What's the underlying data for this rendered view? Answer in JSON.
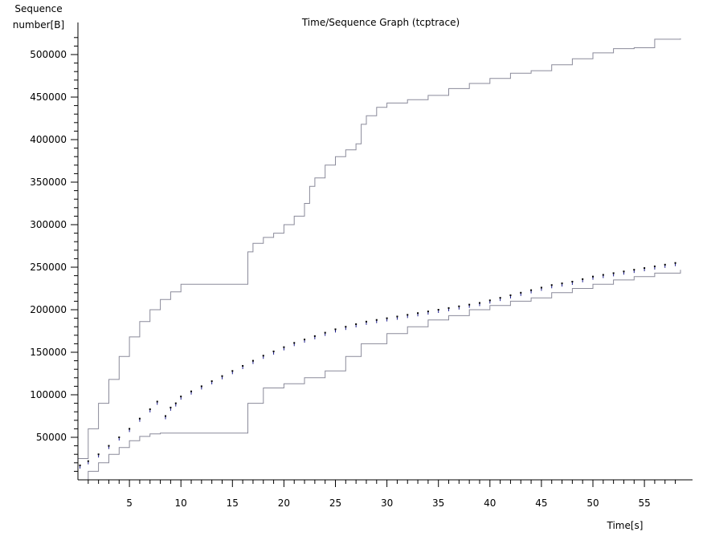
{
  "chart_data": {
    "type": "line",
    "title": "Time/Sequence Graph (tcptrace)",
    "ylabel_line1": "Sequence",
    "ylabel_line2": "number[B]",
    "xlabel": "Time[s]",
    "xlim": [
      0,
      59
    ],
    "ylim": [
      0,
      530000
    ],
    "x_ticks": [
      5,
      10,
      15,
      20,
      25,
      30,
      35,
      40,
      45,
      50,
      55
    ],
    "x_tick_labels": [
      "5",
      "10",
      "15",
      "20",
      "25",
      "30",
      "35",
      "40",
      "45",
      "50",
      "55"
    ],
    "y_ticks": [
      50000,
      100000,
      150000,
      200000,
      250000,
      300000,
      350000,
      400000,
      450000,
      500000
    ],
    "y_tick_labels": [
      "50000",
      "100000",
      "150000",
      "200000",
      "250000",
      "300000",
      "350000",
      "400000",
      "450000",
      "500000"
    ],
    "colors": {
      "window": "#8a8a9a",
      "ack": "#8a8a9a",
      "segments": "#1a1a8c",
      "sack": "#000000"
    },
    "series": [
      {
        "role": "receive-window",
        "x": [
          0,
          1,
          2,
          3,
          4,
          5,
          6,
          7,
          8,
          9,
          10,
          16.3,
          16.5,
          17,
          18,
          19,
          20,
          21,
          22,
          22.5,
          23,
          24,
          25,
          26,
          27,
          27.5,
          28,
          29,
          30,
          32,
          34,
          36,
          38,
          40,
          42,
          44,
          46,
          48,
          50,
          52,
          54,
          56,
          58.5
        ],
        "y": [
          25000,
          60000,
          90000,
          118000,
          145000,
          168000,
          186000,
          200000,
          212000,
          221000,
          230000,
          230000,
          268000,
          278000,
          285000,
          290000,
          300000,
          310000,
          325000,
          345000,
          355000,
          370000,
          380000,
          388000,
          395000,
          418000,
          428000,
          438000,
          443000,
          447000,
          452000,
          460000,
          466000,
          472000,
          478000,
          481000,
          488000,
          495000,
          502000,
          507000,
          508000,
          518000,
          519000
        ]
      },
      {
        "role": "ack-line",
        "x": [
          0,
          1,
          2,
          3,
          4,
          5,
          6,
          7,
          8,
          10,
          12,
          14,
          16.3,
          16.5,
          18,
          20,
          22,
          24,
          26,
          27.5,
          30,
          32,
          34,
          36,
          38,
          40,
          42,
          44,
          46,
          48,
          50,
          52,
          54,
          56,
          58.5
        ],
        "y": [
          0,
          10000,
          20000,
          30000,
          38000,
          46000,
          51000,
          54000,
          55000,
          55000,
          55000,
          55000,
          55000,
          90000,
          108000,
          113000,
          120000,
          128000,
          145000,
          160000,
          172000,
          180000,
          188000,
          193000,
          200000,
          205000,
          210000,
          214000,
          220000,
          225000,
          230000,
          235000,
          239000,
          243000,
          247000
        ]
      },
      {
        "role": "data-segments",
        "x": [
          0.2,
          1,
          2,
          3,
          4,
          5,
          6,
          7,
          7.7,
          8.5,
          9,
          9.5,
          10,
          11,
          12,
          13,
          14,
          15,
          16,
          17,
          18,
          19,
          20,
          21,
          22,
          23,
          24,
          25,
          26,
          27,
          28,
          29,
          30,
          31,
          32,
          33,
          34,
          35,
          36,
          37,
          38,
          39,
          40,
          41,
          42,
          43,
          44,
          45,
          46,
          47,
          48,
          49,
          50,
          51,
          52,
          53,
          54,
          55,
          56,
          57,
          58
        ],
        "y": [
          17000,
          22000,
          30000,
          40000,
          50000,
          60000,
          72000,
          83000,
          92000,
          75000,
          85000,
          90000,
          98000,
          104000,
          110000,
          116000,
          122000,
          128000,
          134000,
          140000,
          146000,
          151000,
          156000,
          161000,
          165000,
          169000,
          173000,
          177000,
          180000,
          183000,
          186000,
          188000,
          190000,
          192000,
          194000,
          196000,
          198000,
          200000,
          202000,
          204000,
          206000,
          208000,
          211000,
          214000,
          217000,
          220000,
          223000,
          226000,
          229000,
          231000,
          233000,
          236000,
          239000,
          241000,
          243000,
          245000,
          247000,
          249000,
          251000,
          253000,
          255000
        ]
      }
    ]
  }
}
